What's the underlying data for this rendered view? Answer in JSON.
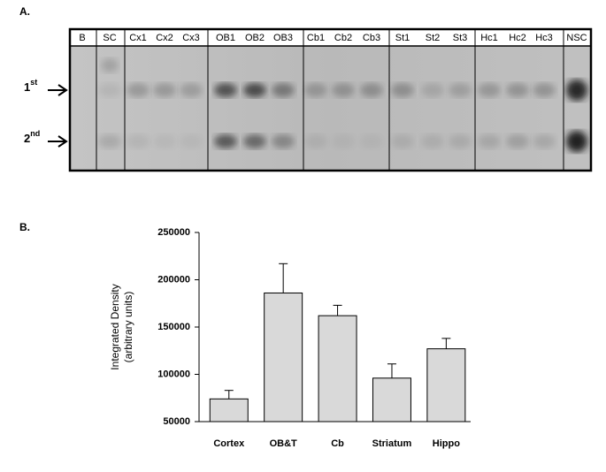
{
  "panels": {
    "a": "A.",
    "b": "B."
  },
  "gel": {
    "lanes": [
      "B",
      "SC",
      "Cx1",
      "Cx2",
      "Cx3",
      "OB1",
      "OB2",
      "OB3",
      "Cb1",
      "Cb2",
      "Cb3",
      "St1",
      "St2",
      "St3",
      "Hc1",
      "Hc2",
      "Hc3",
      "NSC"
    ],
    "bands": [
      {
        "num": "1",
        "sup": "st"
      },
      {
        "num": "2",
        "sup": "nd"
      }
    ]
  },
  "chart_data": {
    "type": "bar",
    "ylabel": [
      "Integrated Density",
      "(arbitrary units)"
    ],
    "categories": [
      "Cortex",
      "OB&T",
      "Cb",
      "Striatum",
      "Hippo"
    ],
    "values": [
      74000,
      186000,
      162000,
      96000,
      127000
    ],
    "errors": [
      9000,
      31000,
      11000,
      15000,
      11000
    ],
    "color": "#d9d9d9",
    "ylim": [
      50000,
      250000
    ],
    "yticks": [
      50000,
      100000,
      150000,
      200000,
      250000
    ]
  }
}
